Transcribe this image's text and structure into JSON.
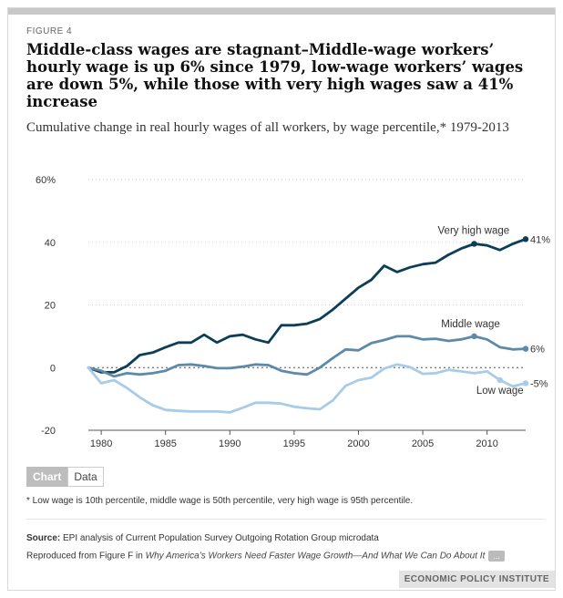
{
  "figure_label": "FIGURE 4",
  "title": "Middle-class wages are stagnant–Middle-wage workers’ hourly wage is up 6% since 1979, low-wage workers’ wages are down 5%, while those with very high wages saw a 41% increase",
  "subtitle": "Cumulative change in real hourly wages of all workers, by wage percentile,* 1979-2013",
  "toggle": {
    "chart_label": "Chart",
    "data_label": "Data"
  },
  "footnote": "* Low wage is 10th percentile, middle wage is 50th percentile, very high wage is 95th percentile.",
  "source": {
    "label": "Source:",
    "text": " EPI analysis of Current Population Survey Outgoing Rotation Group microdata"
  },
  "reproduced": {
    "prefix": "Reproduced from Figure F in ",
    "link": "Why America’s Workers Need Faster Wage Growth—And What We Can Do About It",
    "more": "..."
  },
  "brand": "ECONOMIC POLICY INSTITUTE",
  "colors": {
    "very_high": "#0c3f57",
    "middle": "#5e8aaa",
    "low": "#a8cce8",
    "grid": "#d0d0d0",
    "axis": "#555555"
  },
  "chart_data": {
    "type": "line",
    "x": [
      1979,
      1980,
      1981,
      1982,
      1983,
      1984,
      1985,
      1986,
      1987,
      1988,
      1989,
      1990,
      1991,
      1992,
      1993,
      1994,
      1995,
      1996,
      1997,
      1998,
      1999,
      2000,
      2001,
      2002,
      2003,
      2004,
      2005,
      2006,
      2007,
      2008,
      2009,
      2010,
      2011,
      2012,
      2013
    ],
    "xticks": [
      1980,
      1985,
      1990,
      1995,
      2000,
      2005,
      2010
    ],
    "ylim": [
      -20,
      60
    ],
    "yticks": [
      -20,
      0,
      20,
      40,
      60
    ],
    "ytick_labels": [
      "-20",
      "0",
      "20",
      "40",
      "60%"
    ],
    "series": [
      {
        "name": "Very high wage",
        "key": "very_high",
        "end_label": "41%",
        "values": [
          0,
          -1.5,
          -1.5,
          0.5,
          4,
          4.8,
          6.5,
          8,
          8,
          10.5,
          8,
          10,
          10.5,
          9,
          8,
          13.5,
          13.5,
          14,
          15.5,
          18.5,
          22,
          25.5,
          28,
          32.5,
          30.5,
          32,
          33,
          33.5,
          36,
          38,
          39.5,
          39,
          37.5,
          39.5,
          41
        ]
      },
      {
        "name": "Middle wage",
        "key": "middle",
        "end_label": "6%",
        "values": [
          0,
          -1,
          -2.8,
          -1.8,
          -2.2,
          -1.8,
          -1,
          0.8,
          1,
          0.5,
          -0.2,
          -0.2,
          0.3,
          1,
          0.8,
          -1,
          -1.8,
          -2.2,
          0,
          3,
          5.8,
          5.5,
          7.8,
          8.8,
          10,
          10,
          9,
          9.2,
          8.5,
          9,
          10,
          9,
          6.5,
          5.8,
          6
        ]
      },
      {
        "name": "Low wage",
        "key": "low",
        "end_label": "-5%",
        "values": [
          0,
          -5,
          -4,
          -6.5,
          -9.5,
          -12,
          -13.5,
          -13.8,
          -14,
          -14,
          -14,
          -14.3,
          -12.8,
          -11.2,
          -11.2,
          -11.5,
          -12.5,
          -13,
          -13.3,
          -10.5,
          -5.8,
          -4,
          -3.2,
          -0.3,
          1,
          0.2,
          -2,
          -1.8,
          -0.7,
          -1.2,
          -1.8,
          -1.2,
          -4,
          -6,
          -5
        ]
      }
    ],
    "annotations": [
      {
        "text": "Very high wage",
        "series": "very_high",
        "x": 2009
      },
      {
        "text": "Middle wage",
        "series": "middle",
        "x": 2009
      },
      {
        "text": "Low wage",
        "series": "low",
        "x": 2011
      }
    ]
  }
}
